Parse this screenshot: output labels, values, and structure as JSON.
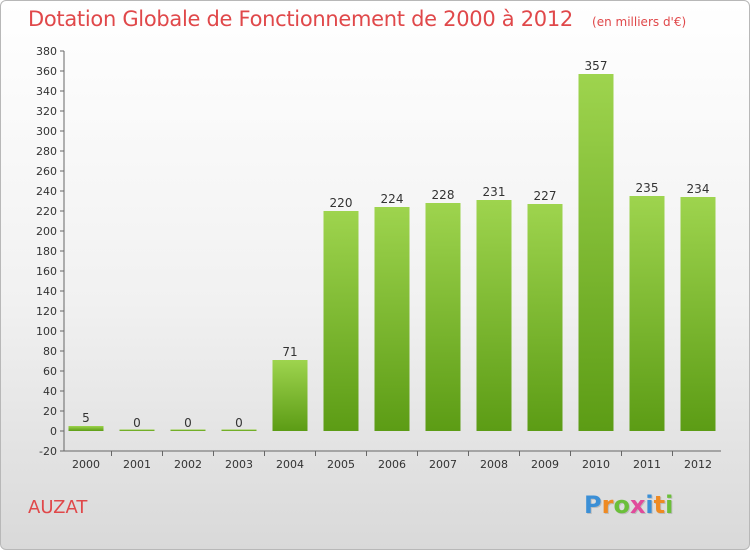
{
  "title": "Dotation Globale de Fonctionnement de 2000 à 2012",
  "subtitle": "(en milliers d'€)",
  "commune": "AUZAT",
  "logo": {
    "letters": [
      "P",
      "r",
      "o",
      "x",
      "i",
      "t",
      "i"
    ],
    "colors": [
      "#3b8fd6",
      "#ee8a23",
      "#6bbf3a",
      "#e04a9b",
      "#3b8fd6",
      "#ee8a23",
      "#6bbf3a"
    ]
  },
  "colors": {
    "bar_light": "#9ed44e",
    "bar_dark": "#5c9c15",
    "title": "#e0484a"
  },
  "chart_data": {
    "type": "bar",
    "categories": [
      "2000",
      "2001",
      "2002",
      "2003",
      "2004",
      "2005",
      "2006",
      "2007",
      "2008",
      "2009",
      "2010",
      "2011",
      "2012"
    ],
    "values": [
      5,
      0,
      0,
      0,
      71,
      220,
      224,
      228,
      231,
      227,
      357,
      235,
      234
    ],
    "value_labels": [
      "5",
      "0",
      "0",
      "0",
      "71",
      "220",
      "224",
      "228",
      "231",
      "227",
      "357",
      "235",
      "234"
    ],
    "ylim": [
      -20,
      380
    ],
    "yticks": [
      -20,
      0,
      20,
      40,
      60,
      80,
      100,
      120,
      140,
      160,
      180,
      200,
      220,
      240,
      260,
      280,
      300,
      320,
      340,
      360,
      380
    ],
    "grid": false,
    "legend": "none"
  }
}
